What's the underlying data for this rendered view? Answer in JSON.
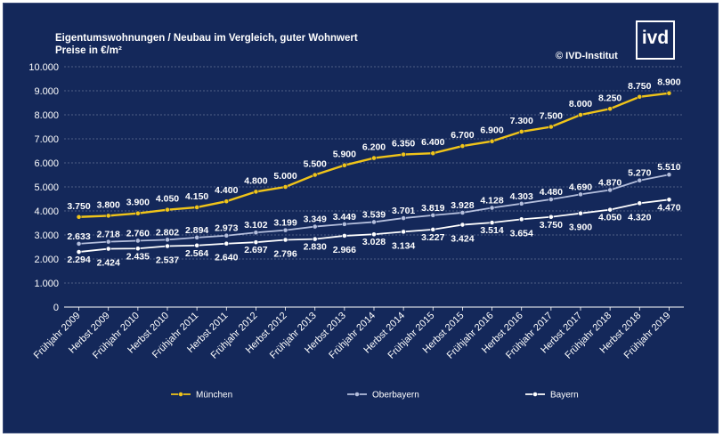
{
  "header": {
    "title_line1": "Eigentumswohnungen / Neubau im  Vergleich, guter Wohnwert",
    "title_line2": "Preise in €/m²",
    "copyright": "© IVD-Institut",
    "logo_text": "ivd"
  },
  "colors": {
    "background": "#14285a",
    "muenchen": "#f0c419",
    "oberbayern": "#b4bedc",
    "bayern": "#ffffff",
    "grid": "#8c96b4"
  },
  "chart_data": {
    "type": "line",
    "title": "Eigentumswohnungen / Neubau im  Vergleich, guter Wohnwert",
    "subtitle": "Preise in €/m²",
    "ylim": [
      0,
      10000
    ],
    "yticks": [
      "0",
      "1.000",
      "2.000",
      "3.000",
      "4.000",
      "5.000",
      "6.000",
      "7.000",
      "8.000",
      "9.000",
      "10.000"
    ],
    "grid": true,
    "legend_position": "bottom",
    "categories": [
      "Frühjahr 2009",
      "Herbst 2009",
      "Frühjahr 2010",
      "Herbst 2010",
      "Frühjahr 2011",
      "Herbst 2011",
      "Frühjahr 2012",
      "Herbst 2012",
      "Frühjahr 2013",
      "Herbst 2013",
      "Frühjahr 2014",
      "Herbst 2014",
      "Frühjahr 2015",
      "Herbst 2015",
      "Frühjahr 2016",
      "Herbst 2016",
      "Frühjahr 2017",
      "Herbst 2017",
      "Frühjahr 2018",
      "Herbst 2018",
      "Frühjahr 2019"
    ],
    "series": [
      {
        "name": "München",
        "values": [
          3750,
          3800,
          3900,
          4050,
          4150,
          4400,
          4800,
          5000,
          5500,
          5900,
          6200,
          6350,
          6400,
          6700,
          6900,
          7300,
          7500,
          8000,
          8250,
          8750,
          8900
        ],
        "labels": [
          "3.750",
          "3.800",
          "3.900",
          "4.050",
          "4.150",
          "4.400",
          "4.800",
          "5.000",
          "5.500",
          "5.900",
          "6.200",
          "6.350",
          "6.400",
          "6.700",
          "6.900",
          "7.300",
          "7.500",
          "8.000",
          "8.250",
          "8.750",
          "8.900"
        ]
      },
      {
        "name": "Oberbayern",
        "values": [
          2633,
          2718,
          2760,
          2802,
          2894,
          2973,
          3102,
          3199,
          3349,
          3449,
          3539,
          3701,
          3819,
          3928,
          4128,
          4303,
          4480,
          4690,
          4870,
          5270,
          5510
        ],
        "labels": [
          "2.633",
          "2.718",
          "2.760",
          "2.802",
          "2.894",
          "2.973",
          "3.102",
          "3.199",
          "3.349",
          "3.449",
          "3.539",
          "3.701",
          "3.819",
          "3.928",
          "4.128",
          "4.303",
          "4.480",
          "4.690",
          "4.870",
          "5.270",
          "5.510"
        ]
      },
      {
        "name": "Bayern",
        "values": [
          2294,
          2424,
          2435,
          2537,
          2564,
          2640,
          2697,
          2796,
          2830,
          2966,
          3028,
          3134,
          3227,
          3424,
          3514,
          3654,
          3750,
          3900,
          4050,
          4320,
          4470
        ],
        "labels": [
          "2.294",
          "2.424",
          "2.435",
          "2.537",
          "2.564",
          "2.640",
          "2.697",
          "2.796",
          "2.830",
          "2.966",
          "3.028",
          "3.134",
          "3.227",
          "3.424",
          "3.514",
          "3.654",
          "3.750",
          "3.900",
          "4.050",
          "4.320",
          "4.470"
        ]
      }
    ]
  }
}
